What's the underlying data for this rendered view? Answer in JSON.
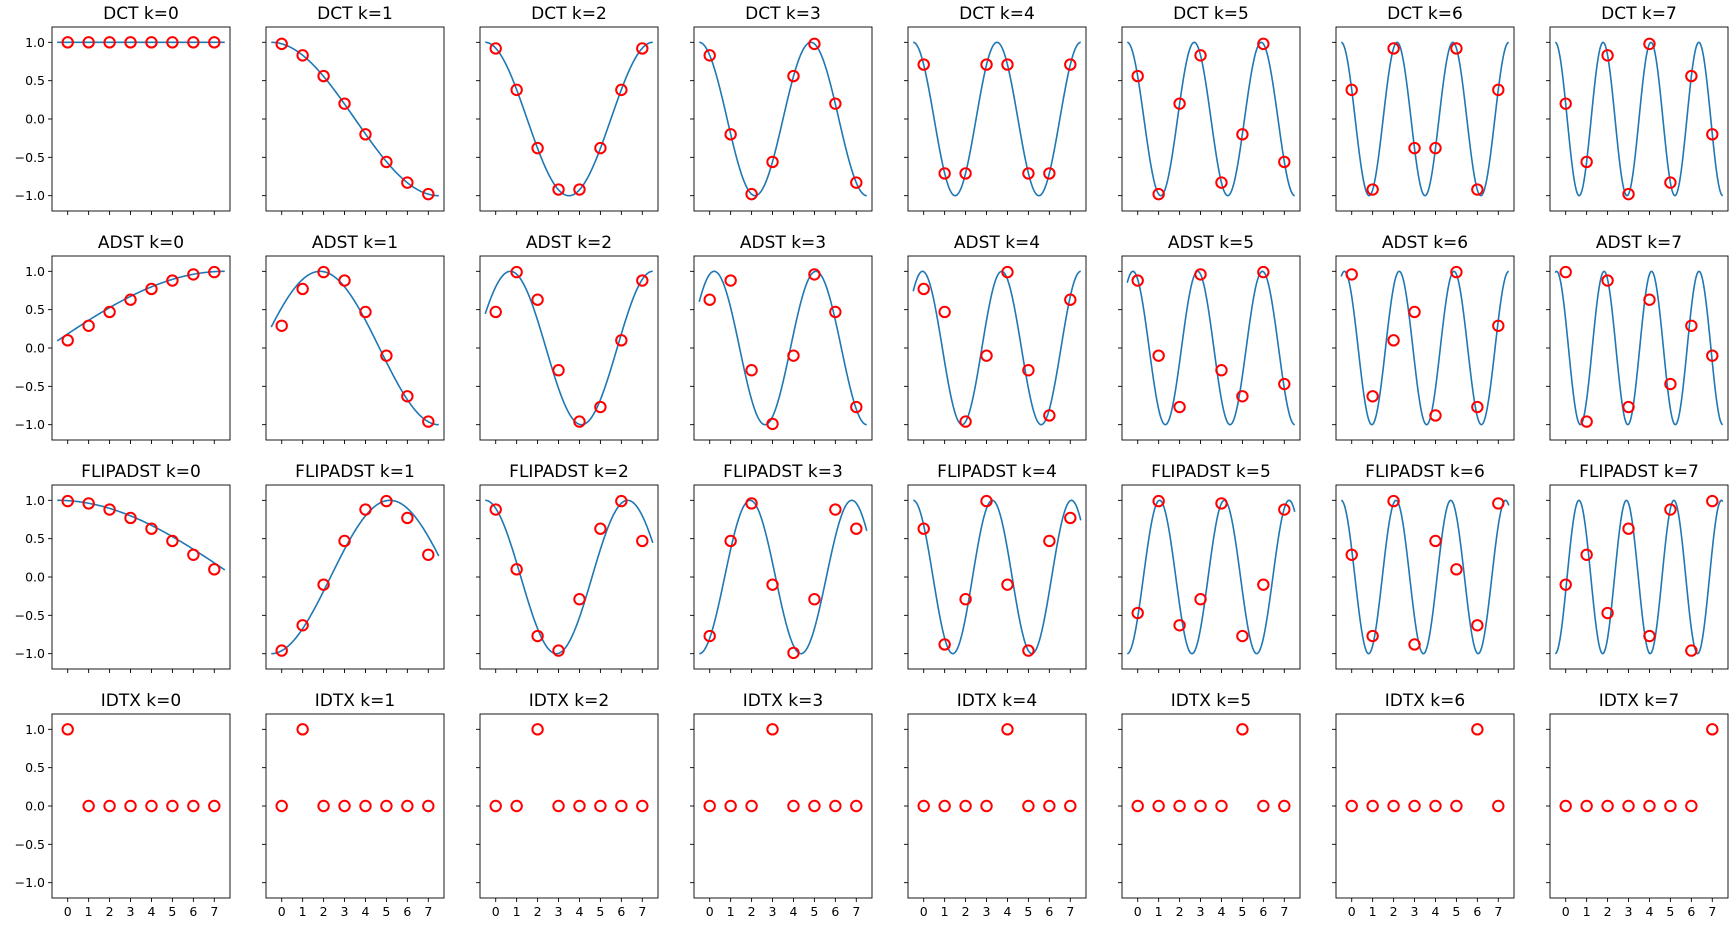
{
  "figure": {
    "background": "#ffffff"
  },
  "style": {
    "curve_color": "#1f77b4",
    "marker_color": "#ff0000",
    "axes_color": "#000000"
  },
  "shared_axes": {
    "xticks": [
      0,
      1,
      2,
      3,
      4,
      5,
      6,
      7
    ],
    "xtick_labels": [
      "0",
      "1",
      "2",
      "3",
      "4",
      "5",
      "6",
      "7"
    ],
    "yticks": [
      1.0,
      0.5,
      0.0,
      -0.5,
      -1.0
    ],
    "ytick_labels": [
      "1.0",
      "0.5",
      "0.0",
      "−0.5",
      "−1.0"
    ],
    "xlim": [
      -0.75,
      7.75
    ],
    "ylim": [
      -1.2,
      1.2
    ]
  },
  "chart_data": [
    {
      "type": "scatter",
      "title": "DCT k=0",
      "transform": "DCT",
      "k": 0,
      "x": [
        0,
        1,
        2,
        3,
        4,
        5,
        6,
        7
      ],
      "y": [
        1,
        1,
        1,
        1,
        1,
        1,
        1,
        1
      ],
      "curve": true
    },
    {
      "type": "scatter",
      "title": "DCT k=1",
      "transform": "DCT",
      "k": 1,
      "x": [
        0,
        1,
        2,
        3,
        4,
        5,
        6,
        7
      ],
      "y": [
        0.98,
        0.83,
        0.56,
        0.2,
        -0.2,
        -0.56,
        -0.83,
        -0.98
      ],
      "curve": true
    },
    {
      "type": "scatter",
      "title": "DCT k=2",
      "transform": "DCT",
      "k": 2,
      "x": [
        0,
        1,
        2,
        3,
        4,
        5,
        6,
        7
      ],
      "y": [
        0.92,
        0.38,
        -0.38,
        -0.92,
        -0.92,
        -0.38,
        0.38,
        0.92
      ],
      "curve": true
    },
    {
      "type": "scatter",
      "title": "DCT k=3",
      "transform": "DCT",
      "k": 3,
      "x": [
        0,
        1,
        2,
        3,
        4,
        5,
        6,
        7
      ],
      "y": [
        0.83,
        -0.2,
        -0.98,
        -0.56,
        0.56,
        0.98,
        0.2,
        -0.83
      ],
      "curve": true
    },
    {
      "type": "scatter",
      "title": "DCT k=4",
      "transform": "DCT",
      "k": 4,
      "x": [
        0,
        1,
        2,
        3,
        4,
        5,
        6,
        7
      ],
      "y": [
        0.71,
        -0.71,
        -0.71,
        0.71,
        0.71,
        -0.71,
        -0.71,
        0.71
      ],
      "curve": true
    },
    {
      "type": "scatter",
      "title": "DCT k=5",
      "transform": "DCT",
      "k": 5,
      "x": [
        0,
        1,
        2,
        3,
        4,
        5,
        6,
        7
      ],
      "y": [
        0.56,
        -0.98,
        0.2,
        0.83,
        -0.83,
        -0.2,
        0.98,
        -0.56
      ],
      "curve": true
    },
    {
      "type": "scatter",
      "title": "DCT k=6",
      "transform": "DCT",
      "k": 6,
      "x": [
        0,
        1,
        2,
        3,
        4,
        5,
        6,
        7
      ],
      "y": [
        0.38,
        -0.92,
        0.92,
        -0.38,
        -0.38,
        0.92,
        -0.92,
        0.38
      ],
      "curve": true
    },
    {
      "type": "scatter",
      "title": "DCT k=7",
      "transform": "DCT",
      "k": 7,
      "x": [
        0,
        1,
        2,
        3,
        4,
        5,
        6,
        7
      ],
      "y": [
        0.2,
        -0.56,
        0.83,
        -0.98,
        0.98,
        -0.83,
        0.56,
        -0.2
      ],
      "curve": true
    },
    {
      "type": "scatter",
      "title": "ADST k=0",
      "transform": "ADST",
      "k": 0,
      "x": [
        0,
        1,
        2,
        3,
        4,
        5,
        6,
        7
      ],
      "y": [
        0.1,
        0.29,
        0.47,
        0.63,
        0.77,
        0.88,
        0.96,
        0.99
      ],
      "curve": true
    },
    {
      "type": "scatter",
      "title": "ADST k=1",
      "transform": "ADST",
      "k": 1,
      "x": [
        0,
        1,
        2,
        3,
        4,
        5,
        6,
        7
      ],
      "y": [
        0.29,
        0.77,
        0.99,
        0.88,
        0.47,
        -0.1,
        -0.63,
        -0.96
      ],
      "curve": true
    },
    {
      "type": "scatter",
      "title": "ADST k=2",
      "transform": "ADST",
      "k": 2,
      "x": [
        0,
        1,
        2,
        3,
        4,
        5,
        6,
        7
      ],
      "y": [
        0.47,
        0.99,
        0.63,
        -0.29,
        -0.96,
        -0.77,
        0.1,
        0.88
      ],
      "curve": true
    },
    {
      "type": "scatter",
      "title": "ADST k=3",
      "transform": "ADST",
      "k": 3,
      "x": [
        0,
        1,
        2,
        3,
        4,
        5,
        6,
        7
      ],
      "y": [
        0.63,
        0.88,
        -0.29,
        -0.99,
        -0.1,
        0.96,
        0.47,
        -0.77
      ],
      "curve": true
    },
    {
      "type": "scatter",
      "title": "ADST k=4",
      "transform": "ADST",
      "k": 4,
      "x": [
        0,
        1,
        2,
        3,
        4,
        5,
        6,
        7
      ],
      "y": [
        0.77,
        0.47,
        -0.96,
        -0.1,
        0.99,
        -0.29,
        -0.88,
        0.63
      ],
      "curve": true
    },
    {
      "type": "scatter",
      "title": "ADST k=5",
      "transform": "ADST",
      "k": 5,
      "x": [
        0,
        1,
        2,
        3,
        4,
        5,
        6,
        7
      ],
      "y": [
        0.88,
        -0.1,
        -0.77,
        0.96,
        -0.29,
        -0.63,
        0.99,
        -0.47
      ],
      "curve": true
    },
    {
      "type": "scatter",
      "title": "ADST k=6",
      "transform": "ADST",
      "k": 6,
      "x": [
        0,
        1,
        2,
        3,
        4,
        5,
        6,
        7
      ],
      "y": [
        0.96,
        -0.63,
        0.1,
        0.47,
        -0.88,
        0.99,
        -0.77,
        0.29
      ],
      "curve": true
    },
    {
      "type": "scatter",
      "title": "ADST k=7",
      "transform": "ADST",
      "k": 7,
      "x": [
        0,
        1,
        2,
        3,
        4,
        5,
        6,
        7
      ],
      "y": [
        0.99,
        -0.96,
        0.88,
        -0.77,
        0.63,
        -0.47,
        0.29,
        -0.1
      ],
      "curve": true
    },
    {
      "type": "scatter",
      "title": "FLIPADST k=0",
      "transform": "FLIPADST",
      "k": 0,
      "x": [
        0,
        1,
        2,
        3,
        4,
        5,
        6,
        7
      ],
      "y": [
        0.99,
        0.96,
        0.88,
        0.77,
        0.63,
        0.47,
        0.29,
        0.1
      ],
      "curve": true
    },
    {
      "type": "scatter",
      "title": "FLIPADST k=1",
      "transform": "FLIPADST",
      "k": 1,
      "x": [
        0,
        1,
        2,
        3,
        4,
        5,
        6,
        7
      ],
      "y": [
        -0.96,
        -0.63,
        -0.1,
        0.47,
        0.88,
        0.99,
        0.77,
        0.29
      ],
      "curve": true
    },
    {
      "type": "scatter",
      "title": "FLIPADST k=2",
      "transform": "FLIPADST",
      "k": 2,
      "x": [
        0,
        1,
        2,
        3,
        4,
        5,
        6,
        7
      ],
      "y": [
        0.88,
        0.1,
        -0.77,
        -0.96,
        -0.29,
        0.63,
        0.99,
        0.47
      ],
      "curve": true
    },
    {
      "type": "scatter",
      "title": "FLIPADST k=3",
      "transform": "FLIPADST",
      "k": 3,
      "x": [
        0,
        1,
        2,
        3,
        4,
        5,
        6,
        7
      ],
      "y": [
        -0.77,
        0.47,
        0.96,
        -0.1,
        -0.99,
        -0.29,
        0.88,
        0.63
      ],
      "curve": true
    },
    {
      "type": "scatter",
      "title": "FLIPADST k=4",
      "transform": "FLIPADST",
      "k": 4,
      "x": [
        0,
        1,
        2,
        3,
        4,
        5,
        6,
        7
      ],
      "y": [
        0.63,
        -0.88,
        -0.29,
        0.99,
        -0.1,
        -0.96,
        0.47,
        0.77
      ],
      "curve": true
    },
    {
      "type": "scatter",
      "title": "FLIPADST k=5",
      "transform": "FLIPADST",
      "k": 5,
      "x": [
        0,
        1,
        2,
        3,
        4,
        5,
        6,
        7
      ],
      "y": [
        -0.47,
        0.99,
        -0.63,
        -0.29,
        0.96,
        -0.77,
        -0.1,
        0.88
      ],
      "curve": true
    },
    {
      "type": "scatter",
      "title": "FLIPADST k=6",
      "transform": "FLIPADST",
      "k": 6,
      "x": [
        0,
        1,
        2,
        3,
        4,
        5,
        6,
        7
      ],
      "y": [
        0.29,
        -0.77,
        0.99,
        -0.88,
        0.47,
        0.1,
        -0.63,
        0.96
      ],
      "curve": true
    },
    {
      "type": "scatter",
      "title": "FLIPADST k=7",
      "transform": "FLIPADST",
      "k": 7,
      "x": [
        0,
        1,
        2,
        3,
        4,
        5,
        6,
        7
      ],
      "y": [
        -0.1,
        0.29,
        -0.47,
        0.63,
        -0.77,
        0.88,
        -0.96,
        0.99
      ],
      "curve": true
    },
    {
      "type": "scatter",
      "title": "IDTX k=0",
      "transform": "IDTX",
      "k": 0,
      "x": [
        0,
        1,
        2,
        3,
        4,
        5,
        6,
        7
      ],
      "y": [
        1,
        0,
        0,
        0,
        0,
        0,
        0,
        0
      ],
      "curve": false
    },
    {
      "type": "scatter",
      "title": "IDTX k=1",
      "transform": "IDTX",
      "k": 1,
      "x": [
        0,
        1,
        2,
        3,
        4,
        5,
        6,
        7
      ],
      "y": [
        0,
        1,
        0,
        0,
        0,
        0,
        0,
        0
      ],
      "curve": false
    },
    {
      "type": "scatter",
      "title": "IDTX k=2",
      "transform": "IDTX",
      "k": 2,
      "x": [
        0,
        1,
        2,
        3,
        4,
        5,
        6,
        7
      ],
      "y": [
        0,
        0,
        1,
        0,
        0,
        0,
        0,
        0
      ],
      "curve": false
    },
    {
      "type": "scatter",
      "title": "IDTX k=3",
      "transform": "IDTX",
      "k": 3,
      "x": [
        0,
        1,
        2,
        3,
        4,
        5,
        6,
        7
      ],
      "y": [
        0,
        0,
        0,
        1,
        0,
        0,
        0,
        0
      ],
      "curve": false
    },
    {
      "type": "scatter",
      "title": "IDTX k=4",
      "transform": "IDTX",
      "k": 4,
      "x": [
        0,
        1,
        2,
        3,
        4,
        5,
        6,
        7
      ],
      "y": [
        0,
        0,
        0,
        0,
        1,
        0,
        0,
        0
      ],
      "curve": false
    },
    {
      "type": "scatter",
      "title": "IDTX k=5",
      "transform": "IDTX",
      "k": 5,
      "x": [
        0,
        1,
        2,
        3,
        4,
        5,
        6,
        7
      ],
      "y": [
        0,
        0,
        0,
        0,
        0,
        1,
        0,
        0
      ],
      "curve": false
    },
    {
      "type": "scatter",
      "title": "IDTX k=6",
      "transform": "IDTX",
      "k": 6,
      "x": [
        0,
        1,
        2,
        3,
        4,
        5,
        6,
        7
      ],
      "y": [
        0,
        0,
        0,
        0,
        0,
        0,
        1,
        0
      ],
      "curve": false
    },
    {
      "type": "scatter",
      "title": "IDTX k=7",
      "transform": "IDTX",
      "k": 7,
      "x": [
        0,
        1,
        2,
        3,
        4,
        5,
        6,
        7
      ],
      "y": [
        0,
        0,
        0,
        0,
        0,
        0,
        0,
        1
      ],
      "curve": false
    }
  ]
}
